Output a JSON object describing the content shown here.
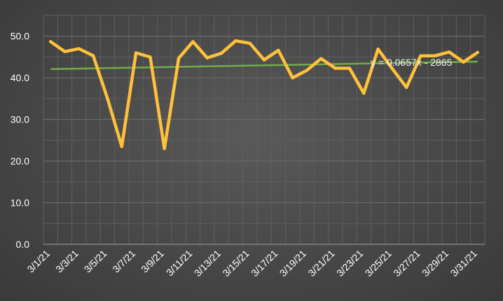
{
  "chart_data": {
    "type": "line",
    "x": [
      "3/1/21",
      "3/2/21",
      "3/3/21",
      "3/4/21",
      "3/5/21",
      "3/6/21",
      "3/7/21",
      "3/8/21",
      "3/9/21",
      "3/10/21",
      "3/11/21",
      "3/12/21",
      "3/13/21",
      "3/14/21",
      "3/15/21",
      "3/16/21",
      "3/17/21",
      "3/18/21",
      "3/19/21",
      "3/20/21",
      "3/21/21",
      "3/22/21",
      "3/23/21",
      "3/24/21",
      "3/25/21",
      "3/26/21",
      "3/27/21",
      "3/28/21",
      "3/29/21",
      "3/30/21",
      "3/31/21"
    ],
    "x_tick_labels": [
      "3/1/21",
      "3/3/21",
      "3/5/21",
      "3/7/21",
      "3/9/21",
      "3/11/21",
      "3/13/21",
      "3/15/21",
      "3/17/21",
      "3/19/21",
      "3/21/21",
      "3/23/21",
      "3/25/21",
      "3/27/21",
      "3/29/21",
      "3/31/21"
    ],
    "series": [
      {
        "values": [
          48.7,
          46.3,
          47.0,
          45.3,
          35.0,
          23.5,
          46.0,
          45.0,
          23.0,
          44.7,
          48.7,
          44.8,
          45.9,
          48.9,
          48.3,
          44.3,
          46.6,
          40.0,
          41.8,
          44.6,
          42.3,
          42.3,
          36.3,
          46.9,
          42.2,
          37.7,
          45.3,
          45.3,
          46.2,
          43.8,
          46.1
        ],
        "color": "#ffc13b"
      }
    ],
    "trendline": {
      "equation": "y = 0.0657x - 2865",
      "start_value": 42.1,
      "end_value": 43.9,
      "color": "#70ad47"
    },
    "y_tick_labels": [
      "0.0",
      "10.0",
      "20.0",
      "30.0",
      "40.0",
      "50.0"
    ],
    "ylim": [
      0,
      55
    ],
    "title": "",
    "xlabel": "",
    "ylabel": "",
    "grid": true,
    "legend": "none",
    "background": "#474747",
    "grid_color": "#5e5e5e"
  }
}
